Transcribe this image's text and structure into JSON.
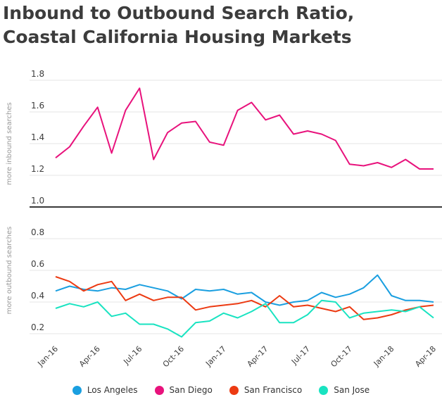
{
  "title_line1": "Inbound to Outbound Search Ratio,",
  "title_line2": "Coastal California Housing Markets",
  "chart_data": {
    "type": "line",
    "ylabel_upper": "more inbound searches",
    "ylabel_lower": "more outbound searches",
    "ylim": [
      0.2,
      1.8
    ],
    "yticks": [
      "1.8",
      "1.6",
      "1.4",
      "1.2",
      "1.0",
      "0.8",
      "0.6",
      "0.4",
      "0.2"
    ],
    "ytick_values": [
      1.8,
      1.6,
      1.4,
      1.2,
      1.0,
      0.8,
      0.6,
      0.4,
      0.2
    ],
    "baseline": 1.0,
    "x": [
      "Jan-16",
      "Feb-16",
      "Mar-16",
      "Apr-16",
      "May-16",
      "Jun-16",
      "Jul-16",
      "Aug-16",
      "Sep-16",
      "Oct-16",
      "Nov-16",
      "Dec-16",
      "Jan-17",
      "Feb-17",
      "Mar-17",
      "Apr-17",
      "May-17",
      "Jun-17",
      "Jul-17",
      "Aug-17",
      "Sep-17",
      "Oct-17",
      "Nov-17",
      "Dec-17",
      "Jan-18",
      "Feb-18",
      "Mar-18",
      "Apr-18"
    ],
    "xticks": [
      "Jan-16",
      "Apr-16",
      "Jul-16",
      "Oct-16",
      "Jan-17",
      "Apr-17",
      "Jul-17",
      "Oct-17",
      "Jan-18",
      "Apr-18"
    ],
    "grid": true,
    "legend_position": "bottom",
    "series": [
      {
        "name": "Los Angeles",
        "color": "#1a9fe0",
        "values": [
          0.47,
          0.5,
          0.48,
          0.47,
          0.49,
          0.48,
          0.51,
          0.49,
          0.47,
          0.42,
          0.48,
          0.47,
          0.48,
          0.45,
          0.46,
          0.4,
          0.38,
          0.4,
          0.41,
          0.46,
          0.43,
          0.45,
          0.49,
          0.57,
          0.44,
          0.41,
          0.41,
          0.4
        ]
      },
      {
        "name": "San Diego",
        "color": "#e8127c",
        "values": [
          1.31,
          1.38,
          1.51,
          1.63,
          1.34,
          1.61,
          1.75,
          1.3,
          1.47,
          1.53,
          1.54,
          1.41,
          1.39,
          1.61,
          1.66,
          1.55,
          1.58,
          1.46,
          1.48,
          1.46,
          1.42,
          1.27,
          1.26,
          1.28,
          1.25,
          1.3,
          1.24,
          1.24
        ]
      },
      {
        "name": "San Francisco",
        "color": "#ec3a12",
        "values": [
          0.56,
          0.53,
          0.47,
          0.51,
          0.53,
          0.41,
          0.45,
          0.41,
          0.43,
          0.43,
          0.35,
          0.37,
          0.38,
          0.39,
          0.41,
          0.37,
          0.44,
          0.37,
          0.38,
          0.36,
          0.34,
          0.37,
          0.29,
          0.3,
          0.32,
          0.35,
          0.37,
          0.38
        ]
      },
      {
        "name": "San Jose",
        "color": "#19e3c1",
        "values": [
          0.36,
          0.39,
          0.37,
          0.4,
          0.31,
          0.33,
          0.26,
          0.26,
          0.23,
          0.18,
          0.27,
          0.28,
          0.33,
          0.3,
          0.34,
          0.39,
          0.27,
          0.27,
          0.32,
          0.41,
          0.4,
          0.3,
          0.33,
          0.34,
          0.35,
          0.34,
          0.37,
          0.3
        ]
      }
    ]
  }
}
